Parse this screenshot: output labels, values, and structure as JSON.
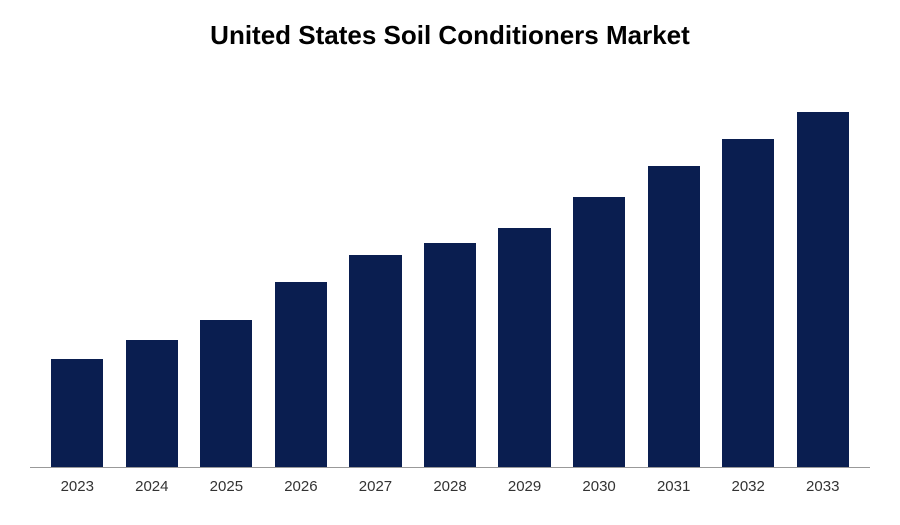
{
  "chart": {
    "type": "bar",
    "title": "United States Soil Conditioners Market",
    "title_fontsize": 26,
    "title_color": "#000000",
    "categories": [
      "2023",
      "2024",
      "2025",
      "2026",
      "2027",
      "2028",
      "2029",
      "2030",
      "2031",
      "2032",
      "2033"
    ],
    "values": [
      28,
      33,
      38,
      48,
      55,
      58,
      62,
      70,
      78,
      85,
      92
    ],
    "ylim": [
      0,
      100
    ],
    "bar_color": "#0a1e50",
    "bar_width": 0.7,
    "background_color": "#ffffff",
    "axis_color": "#999999",
    "label_fontsize": 15,
    "label_color": "#333333"
  }
}
